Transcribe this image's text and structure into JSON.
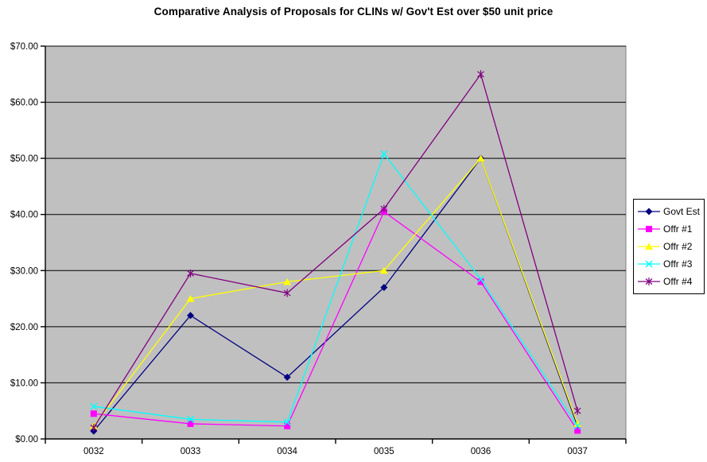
{
  "chart_data": {
    "type": "line",
    "title": "Comparative Analysis of Proposals for CLINs w/ Gov't Est over $50 unit price",
    "categories": [
      "0032",
      "0033",
      "0034",
      "0035",
      "0036",
      "0037"
    ],
    "series": [
      {
        "name": "Govt Est",
        "color": "#000080",
        "marker": "diamond",
        "values": [
          1.4,
          22.0,
          11.0,
          27.0,
          50.0,
          2.3
        ]
      },
      {
        "name": "Offr #1",
        "color": "#FF00FF",
        "marker": "square",
        "values": [
          4.5,
          2.7,
          2.3,
          40.5,
          28.0,
          1.5
        ]
      },
      {
        "name": "Offr #2",
        "color": "#FFFF00",
        "marker": "triangle",
        "values": [
          2.3,
          25.0,
          28.0,
          30.0,
          50.0,
          2.7
        ]
      },
      {
        "name": "Offr #3",
        "color": "#00FFFF",
        "marker": "x",
        "values": [
          5.8,
          3.5,
          3.0,
          50.8,
          28.5,
          2.3
        ]
      },
      {
        "name": "Offr #4",
        "color": "#800080",
        "marker": "asterisk",
        "values": [
          2.0,
          29.5,
          26.0,
          41.0,
          65.0,
          5.0
        ]
      }
    ],
    "xlabel": "",
    "ylabel": "",
    "ylim": [
      0,
      70
    ],
    "ytick_step": 10,
    "ytick_labels": [
      "$0.00",
      "$10.00",
      "$20.00",
      "$30.00",
      "$40.00",
      "$50.00",
      "$60.00",
      "$70.00"
    ],
    "grid": true,
    "legend_position": "right",
    "plot_bg": "#C0C0C0",
    "gridline_color": "#000000",
    "axis_color": "#000000",
    "plot_border_color": "#808080"
  }
}
